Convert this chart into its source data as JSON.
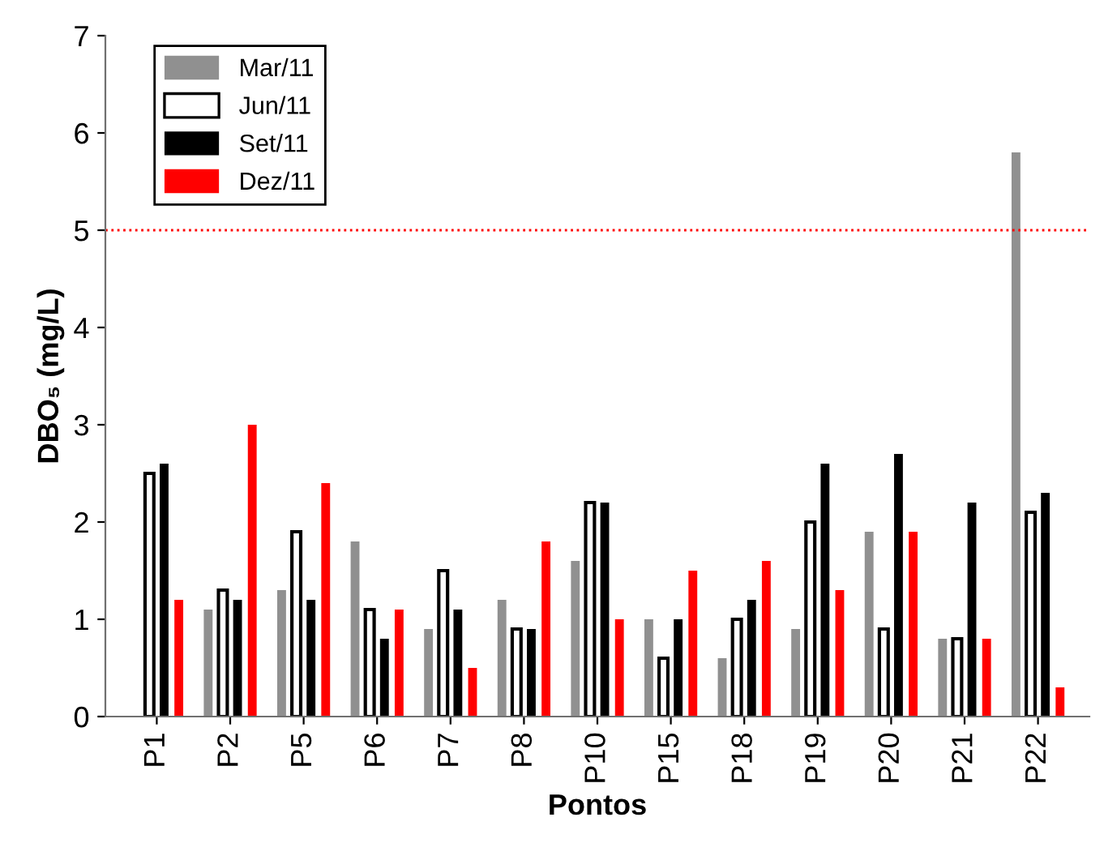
{
  "chart_data": {
    "type": "bar",
    "xlabel": "Pontos",
    "ylabel": "DBO₅ (mg/L)",
    "categories": [
      "P1",
      "P2",
      "P5",
      "P6",
      "P7",
      "P8",
      "P10",
      "P15",
      "P18",
      "P19",
      "P20",
      "P21",
      "P22"
    ],
    "series": [
      {
        "name": "Mar/11",
        "color": "#909090",
        "values": [
          null,
          1.1,
          1.3,
          1.8,
          0.9,
          1.2,
          1.6,
          1.0,
          0.6,
          0.9,
          1.9,
          0.8,
          5.8
        ]
      },
      {
        "name": "Jun/11",
        "color": "#ffffff",
        "values": [
          2.5,
          1.3,
          1.9,
          1.1,
          1.5,
          0.9,
          2.2,
          0.6,
          1.0,
          2.0,
          0.9,
          0.8,
          2.1
        ]
      },
      {
        "name": "Set/11",
        "color": "#000000",
        "values": [
          2.6,
          1.2,
          1.2,
          0.8,
          1.1,
          0.9,
          2.2,
          1.0,
          1.2,
          2.6,
          2.7,
          2.2,
          2.3
        ]
      },
      {
        "name": "Dez/11",
        "color": "#ff0000",
        "values": [
          1.2,
          3.0,
          2.4,
          1.1,
          0.5,
          1.8,
          1.0,
          1.5,
          1.6,
          1.3,
          1.9,
          0.8,
          0.3
        ]
      }
    ],
    "ylim": [
      0,
      7
    ],
    "yticks": [
      0,
      1,
      2,
      3,
      4,
      5,
      6,
      7
    ],
    "ref_lines": [
      {
        "axis": "y",
        "value": 5,
        "color": "#ff0000",
        "line_style": "dotted"
      }
    ],
    "grid": false,
    "legend": "top left"
  }
}
